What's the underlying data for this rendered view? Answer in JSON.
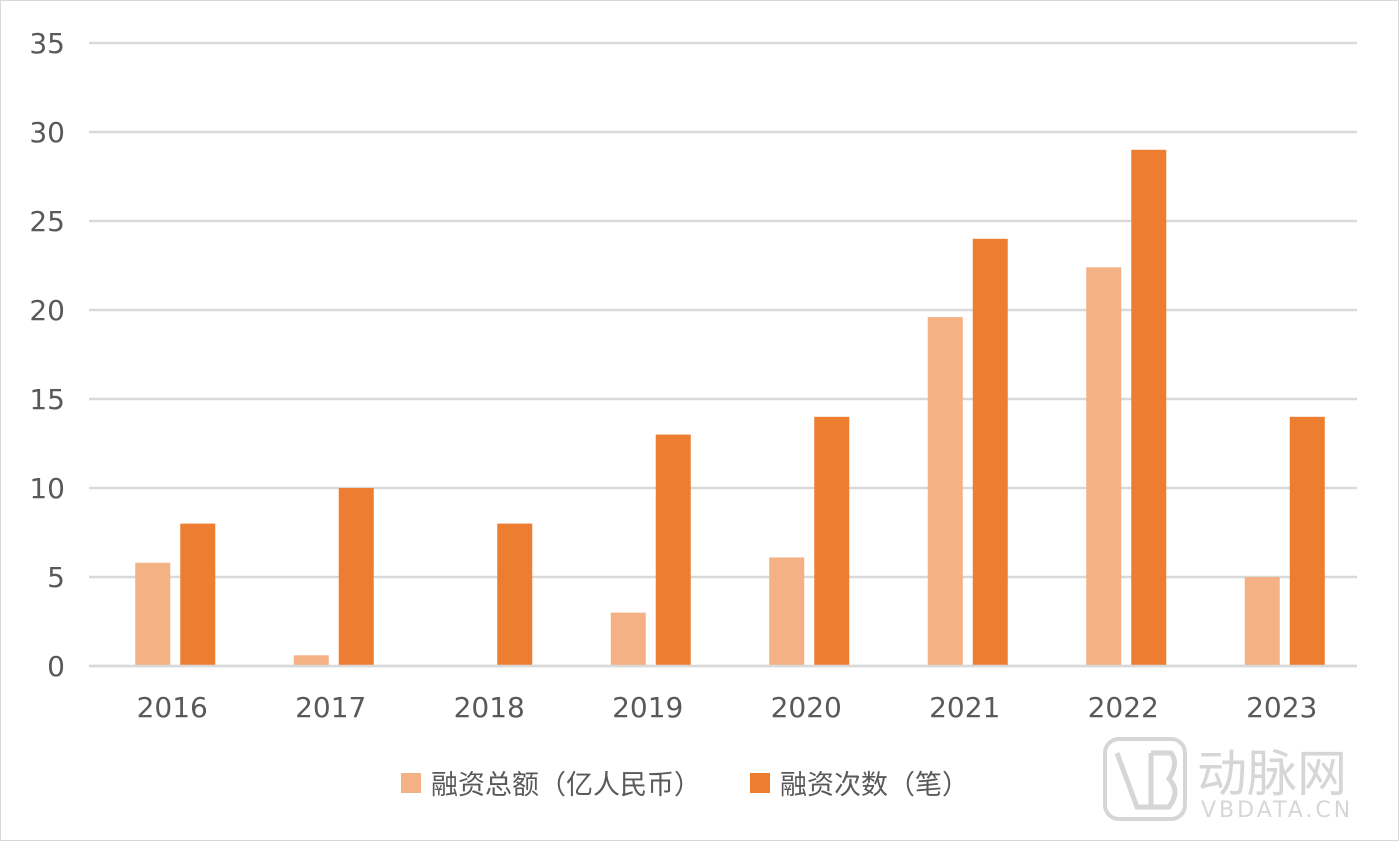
{
  "chart_data": {
    "type": "bar",
    "categories": [
      "2016",
      "2017",
      "2018",
      "2019",
      "2020",
      "2021",
      "2022",
      "2023"
    ],
    "series": [
      {
        "name": "融资总额（亿人民币）",
        "values": [
          5.8,
          0.6,
          0,
          3.0,
          6.1,
          19.6,
          22.4,
          5.0
        ],
        "color": "#f4b183"
      },
      {
        "name": "融资次数（笔）",
        "values": [
          8,
          10,
          8,
          13,
          14,
          24,
          29,
          14
        ],
        "color": "#ed7d31"
      }
    ],
    "yticks": [
      "0",
      "5",
      "10",
      "15",
      "20",
      "25",
      "30",
      "35"
    ],
    "ylim": [
      0,
      35
    ],
    "grid": true,
    "legend_position": "bottom-center",
    "title": "",
    "xlabel": "",
    "ylabel": ""
  },
  "watermark": {
    "logo_text": "动脉网",
    "url_text": "VBDATA.CN",
    "icon": "vb-logo-icon"
  }
}
